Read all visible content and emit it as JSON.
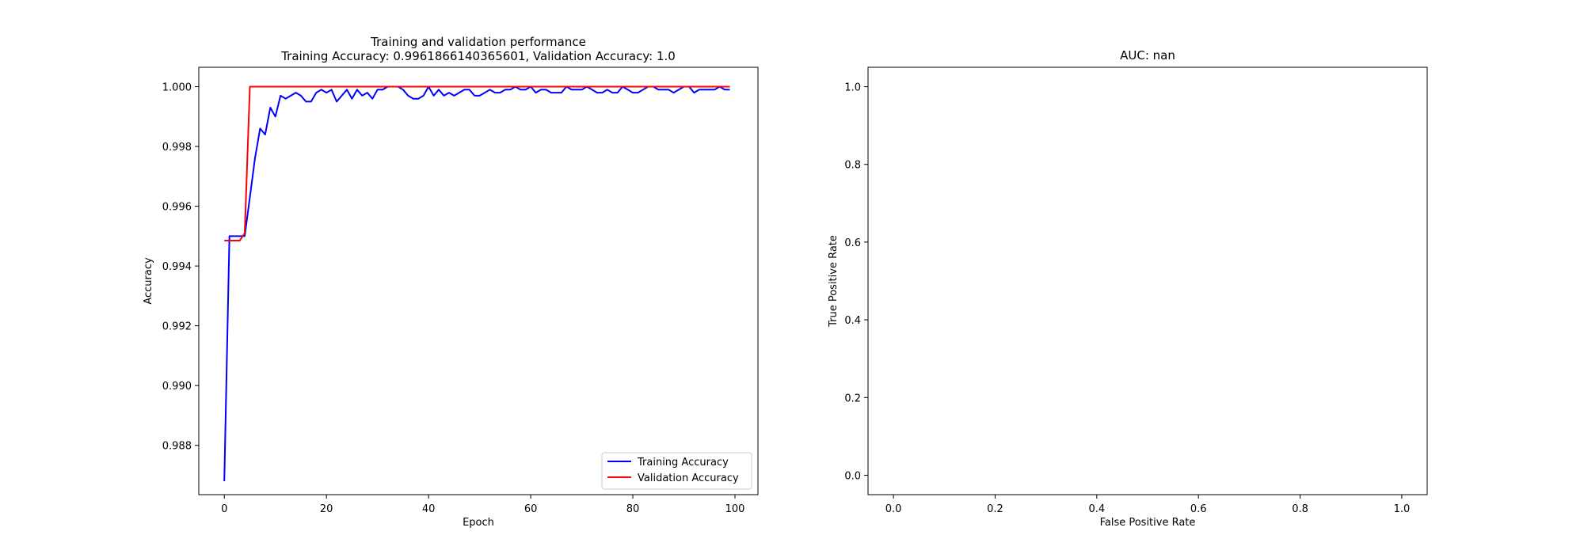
{
  "chart_data": [
    {
      "type": "line",
      "title": "Training and validation performance",
      "subtitle": "Training Accuracy: 0.9961866140365601, Validation Accuracy: 1.0",
      "xlabel": "Epoch",
      "ylabel": "Accuracy",
      "xlim": [
        -5,
        104.5
      ],
      "ylim": [
        0.98635,
        1.00065
      ],
      "xticks": [
        0,
        20,
        40,
        60,
        80,
        100
      ],
      "xtick_labels": [
        "0",
        "20",
        "40",
        "60",
        "80",
        "100"
      ],
      "yticks": [
        0.988,
        0.99,
        0.992,
        0.994,
        0.996,
        0.998,
        1.0
      ],
      "ytick_labels": [
        "0.988",
        "0.990",
        "0.992",
        "0.994",
        "0.996",
        "0.998",
        "1.000"
      ],
      "grid": false,
      "legend_position": "bottom-right",
      "series": [
        {
          "name": "Training Accuracy",
          "color": "#0000ff",
          "x": [
            0,
            1,
            2,
            3,
            4,
            5,
            6,
            7,
            8,
            9,
            10,
            11,
            12,
            13,
            14,
            15,
            16,
            17,
            18,
            19,
            20,
            21,
            22,
            23,
            24,
            25,
            26,
            27,
            28,
            29,
            30,
            31,
            32,
            33,
            34,
            35,
            36,
            37,
            38,
            39,
            40,
            41,
            42,
            43,
            44,
            45,
            46,
            47,
            48,
            49,
            50,
            51,
            52,
            53,
            54,
            55,
            56,
            57,
            58,
            59,
            60,
            61,
            62,
            63,
            64,
            65,
            66,
            67,
            68,
            69,
            70,
            71,
            72,
            73,
            74,
            75,
            76,
            77,
            78,
            79,
            80,
            81,
            82,
            83,
            84,
            85,
            86,
            87,
            88,
            89,
            90,
            91,
            92,
            93,
            94,
            95,
            96,
            97,
            98,
            99
          ],
          "y": [
            0.9868,
            0.995,
            0.995,
            0.995,
            0.995,
            0.9963,
            0.9976,
            0.9986,
            0.9984,
            0.9993,
            0.999,
            0.9997,
            0.9996,
            0.9997,
            0.9998,
            0.9997,
            0.9995,
            0.9995,
            0.9998,
            0.9999,
            0.9998,
            0.9999,
            0.9995,
            0.9997,
            0.9999,
            0.9996,
            0.9999,
            0.9997,
            0.9998,
            0.9996,
            0.9999,
            0.9999,
            1.0,
            1.0,
            1.0,
            0.9999,
            0.9997,
            0.9996,
            0.9996,
            0.9997,
            1.0,
            0.9997,
            0.9999,
            0.9997,
            0.9998,
            0.9997,
            0.9998,
            0.9999,
            0.9999,
            0.9997,
            0.9997,
            0.9998,
            0.9999,
            0.9998,
            0.9998,
            0.9999,
            0.9999,
            1.0,
            0.9999,
            0.9999,
            1.0,
            0.9998,
            0.9999,
            0.9999,
            0.9998,
            0.9998,
            0.9998,
            1.0,
            0.9999,
            0.9999,
            0.9999,
            1.0,
            0.9999,
            0.9998,
            0.9998,
            0.9999,
            0.9998,
            0.9998,
            1.0,
            0.9999,
            0.9998,
            0.9998,
            0.9999,
            1.0,
            1.0,
            0.9999,
            0.9999,
            0.9999,
            0.9998,
            0.9999,
            1.0,
            1.0,
            0.9998,
            0.9999,
            0.9999,
            0.9999,
            0.9999,
            1.0,
            0.9999,
            0.9999
          ]
        },
        {
          "name": "Validation Accuracy",
          "color": "#ff0000",
          "x": [
            0,
            1,
            2,
            3,
            4,
            5,
            6,
            7,
            8,
            9,
            10,
            11,
            12,
            13,
            14,
            15,
            16,
            17,
            18,
            19,
            20,
            21,
            22,
            23,
            24,
            25,
            26,
            27,
            28,
            29,
            30,
            31,
            32,
            33,
            34,
            35,
            36,
            37,
            38,
            39,
            40,
            41,
            42,
            43,
            44,
            45,
            46,
            47,
            48,
            49,
            50,
            51,
            52,
            53,
            54,
            55,
            56,
            57,
            58,
            59,
            60,
            61,
            62,
            63,
            64,
            65,
            66,
            67,
            68,
            69,
            70,
            71,
            72,
            73,
            74,
            75,
            76,
            77,
            78,
            79,
            80,
            81,
            82,
            83,
            84,
            85,
            86,
            87,
            88,
            89,
            90,
            91,
            92,
            93,
            94,
            95,
            96,
            97,
            98,
            99
          ],
          "y": [
            0.99485,
            0.99485,
            0.99485,
            0.99485,
            0.9951,
            1.0,
            1.0,
            1.0,
            1.0,
            1.0,
            1.0,
            1.0,
            1.0,
            1.0,
            1.0,
            1.0,
            1.0,
            1.0,
            1.0,
            1.0,
            1.0,
            1.0,
            1.0,
            1.0,
            1.0,
            1.0,
            1.0,
            1.0,
            1.0,
            1.0,
            1.0,
            1.0,
            1.0,
            1.0,
            1.0,
            1.0,
            1.0,
            1.0,
            1.0,
            1.0,
            1.0,
            1.0,
            1.0,
            1.0,
            1.0,
            1.0,
            1.0,
            1.0,
            1.0,
            1.0,
            1.0,
            1.0,
            1.0,
            1.0,
            1.0,
            1.0,
            1.0,
            1.0,
            1.0,
            1.0,
            1.0,
            1.0,
            1.0,
            1.0,
            1.0,
            1.0,
            1.0,
            1.0,
            1.0,
            1.0,
            1.0,
            1.0,
            1.0,
            1.0,
            1.0,
            1.0,
            1.0,
            1.0,
            1.0,
            1.0,
            1.0,
            1.0,
            1.0,
            1.0,
            1.0,
            1.0,
            1.0,
            1.0,
            1.0,
            1.0,
            1.0,
            1.0,
            1.0,
            1.0,
            1.0,
            1.0,
            1.0,
            1.0,
            1.0,
            1.0
          ]
        }
      ]
    },
    {
      "type": "line",
      "title": "AUC: nan",
      "xlabel": "False Positive Rate",
      "ylabel": "True Positive Rate",
      "xlim": [
        -0.05,
        1.05
      ],
      "ylim": [
        -0.05,
        1.05
      ],
      "xticks": [
        0.0,
        0.2,
        0.4,
        0.6,
        0.8,
        1.0
      ],
      "xtick_labels": [
        "0.0",
        "0.2",
        "0.4",
        "0.6",
        "0.8",
        "1.0"
      ],
      "yticks": [
        0.0,
        0.2,
        0.4,
        0.6,
        0.8,
        1.0
      ],
      "ytick_labels": [
        "0.0",
        "0.2",
        "0.4",
        "0.6",
        "0.8",
        "1.0"
      ],
      "grid": false,
      "series": []
    }
  ]
}
